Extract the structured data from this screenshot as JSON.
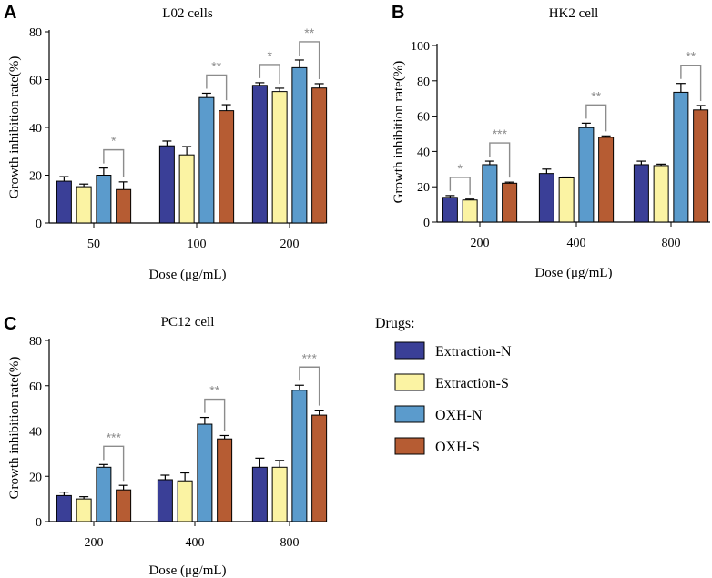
{
  "legend": {
    "title": "Drugs:",
    "items": [
      {
        "label": "Extraction-N",
        "color": "#3a3f97"
      },
      {
        "label": "Extraction-S",
        "color": "#fbf3a3"
      },
      {
        "label": "OXH-N",
        "color": "#5b9bcc"
      },
      {
        "label": "OXH-S",
        "color": "#b65c33"
      }
    ]
  },
  "chart_data": [
    {
      "panel": "A",
      "type": "bar",
      "title": "L02 cells",
      "xlabel": "Dose (μg/mL)",
      "ylabel": "Growth inhibition rate(%)",
      "ylim": [
        0,
        80
      ],
      "yticks": [
        0,
        20,
        40,
        60,
        80
      ],
      "categories": [
        "50",
        "100",
        "200"
      ],
      "series": [
        {
          "name": "Extraction-N",
          "values": [
            17.5,
            32.3,
            57.6
          ],
          "errors": [
            1.9,
            2.0,
            1.1
          ]
        },
        {
          "name": "Extraction-S",
          "values": [
            15.2,
            28.5,
            55.0
          ],
          "errors": [
            1.1,
            3.5,
            1.4
          ]
        },
        {
          "name": "OXH-N",
          "values": [
            20.0,
            52.5,
            65.0
          ],
          "errors": [
            3.0,
            1.8,
            3.2
          ]
        },
        {
          "name": "OXH-S",
          "values": [
            14.0,
            47.0,
            56.5
          ],
          "errors": [
            3.2,
            2.5,
            1.8
          ]
        }
      ],
      "significance": [
        {
          "category": 0,
          "from": 2,
          "to": 3,
          "label": "*"
        },
        {
          "category": 1,
          "from": 2,
          "to": 3,
          "label": "**"
        },
        {
          "category": 2,
          "from": 0,
          "to": 1,
          "label": "*"
        },
        {
          "category": 2,
          "from": 2,
          "to": 3,
          "label": "**"
        }
      ]
    },
    {
      "panel": "B",
      "type": "bar",
      "title": "HK2 cell",
      "xlabel": "Dose (μg/mL)",
      "ylabel": "Growth inhibition rate(%)",
      "ylim": [
        0,
        100
      ],
      "yticks": [
        0,
        20,
        40,
        60,
        80,
        100
      ],
      "categories": [
        "200",
        "400",
        "800"
      ],
      "series": [
        {
          "name": "Extraction-N",
          "values": [
            14.0,
            27.5,
            32.5
          ],
          "errors": [
            1.0,
            2.5,
            2.0
          ]
        },
        {
          "name": "Extraction-S",
          "values": [
            12.5,
            25.0,
            32.0
          ],
          "errors": [
            0.5,
            0.5,
            0.8
          ]
        },
        {
          "name": "OXH-N",
          "values": [
            32.5,
            53.5,
            73.5
          ],
          "errors": [
            2.0,
            2.5,
            5.0
          ]
        },
        {
          "name": "OXH-S",
          "values": [
            22.0,
            48.0,
            63.5
          ],
          "errors": [
            0.6,
            0.8,
            2.5
          ]
        }
      ],
      "significance": [
        {
          "category": 0,
          "from": 0,
          "to": 1,
          "label": "*"
        },
        {
          "category": 0,
          "from": 2,
          "to": 3,
          "label": "***"
        },
        {
          "category": 1,
          "from": 2,
          "to": 3,
          "label": "**"
        },
        {
          "category": 2,
          "from": 2,
          "to": 3,
          "label": "**"
        }
      ]
    },
    {
      "panel": "C",
      "type": "bar",
      "title": "PC12 cell",
      "xlabel": "Dose (μg/mL)",
      "ylabel": "Growth inhibition rate(%)",
      "ylim": [
        0,
        80
      ],
      "yticks": [
        0,
        20,
        40,
        60,
        80
      ],
      "categories": [
        "200",
        "400",
        "800"
      ],
      "series": [
        {
          "name": "Extraction-N",
          "values": [
            11.5,
            18.5,
            24.0
          ],
          "errors": [
            1.5,
            2.0,
            4.0
          ]
        },
        {
          "name": "Extraction-S",
          "values": [
            10.0,
            18.0,
            24.0
          ],
          "errors": [
            1.0,
            3.5,
            3.0
          ]
        },
        {
          "name": "OXH-N",
          "values": [
            24.0,
            43.0,
            58.0
          ],
          "errors": [
            1.2,
            3.0,
            2.2
          ]
        },
        {
          "name": "OXH-S",
          "values": [
            14.0,
            36.5,
            47.0
          ],
          "errors": [
            2.0,
            1.5,
            2.2
          ]
        }
      ],
      "significance": [
        {
          "category": 0,
          "from": 2,
          "to": 3,
          "label": "***"
        },
        {
          "category": 1,
          "from": 2,
          "to": 3,
          "label": "**"
        },
        {
          "category": 2,
          "from": 2,
          "to": 3,
          "label": "***"
        }
      ]
    }
  ]
}
